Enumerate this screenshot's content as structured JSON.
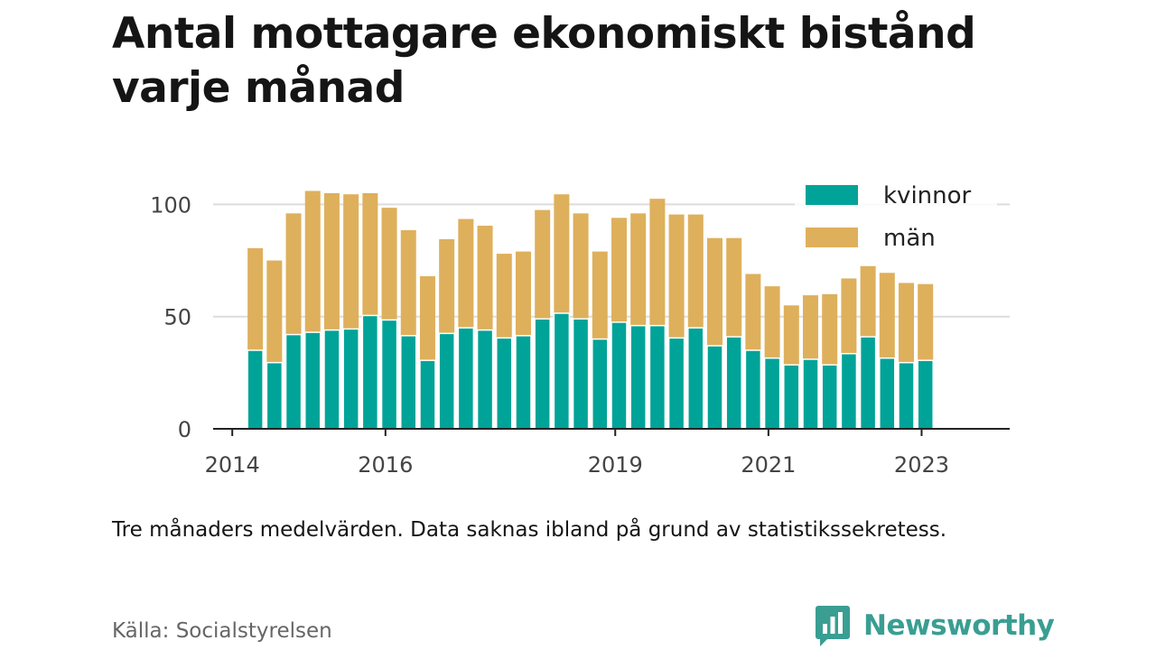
{
  "title": "Antal mottagare ekonomiskt bistånd varje månad",
  "note": "Tre månaders medelvärden. Data saknas ibland på grund av statistikssekretess.",
  "source": "Källa: Socialstyrelsen",
  "brand": {
    "name": "Newsworthy",
    "color": "#3a9e92",
    "logo_icon": "bar-chart-speech-bubble-icon"
  },
  "colors": {
    "kvinnor": "#00a398",
    "man": "#deb05c",
    "grid": "#dddddd",
    "axis": "#222222",
    "text": "#444444"
  },
  "chart_data": {
    "type": "bar",
    "stacked": true,
    "x_ticks": [
      "2014",
      "2016",
      "2019",
      "2021",
      "2023"
    ],
    "x_tick_positions": [
      2014.0,
      2016.0,
      2019.0,
      2021.0,
      2023.0
    ],
    "xlim": [
      2013.75,
      2024.15
    ],
    "ylim": [
      0,
      107
    ],
    "y_ticks": [
      0,
      50,
      100
    ],
    "grid": true,
    "legend_position": "top-right",
    "x": [
      2014.3,
      2014.55,
      2014.8,
      2015.05,
      2015.3,
      2015.55,
      2015.8,
      2016.05,
      2016.3,
      2016.55,
      2016.8,
      2017.05,
      2017.3,
      2017.55,
      2017.8,
      2018.05,
      2018.3,
      2018.55,
      2018.8,
      2019.05,
      2019.3,
      2019.55,
      2019.8,
      2020.05,
      2020.3,
      2020.55,
      2020.8,
      2021.05,
      2021.3,
      2021.55,
      2021.8,
      2022.05,
      2022.3,
      2022.55,
      2022.8,
      2023.05
    ],
    "series": [
      {
        "name": "kvinnor",
        "values": [
          35,
          29.5,
          42,
          43,
          44,
          44.5,
          50.5,
          48.5,
          41.5,
          30.5,
          42.5,
          45,
          44,
          40.5,
          41.5,
          49,
          51.5,
          49,
          40,
          47.5,
          46,
          46,
          40.5,
          45,
          37,
          41,
          35,
          31.5,
          28.5,
          31,
          28.5,
          33.5,
          41,
          31.5,
          29.5,
          30.5
        ]
      },
      {
        "name": "män",
        "values": [
          45.5,
          45.5,
          54,
          63,
          61,
          60,
          54.5,
          50,
          47,
          37.5,
          42,
          48.5,
          46.5,
          37.5,
          37.5,
          48.5,
          53,
          47,
          39,
          46.5,
          50,
          56.5,
          55,
          50.5,
          48,
          44,
          34,
          32,
          26.5,
          28.5,
          31.5,
          33.5,
          31.5,
          38,
          35.5,
          34
        ]
      }
    ]
  }
}
